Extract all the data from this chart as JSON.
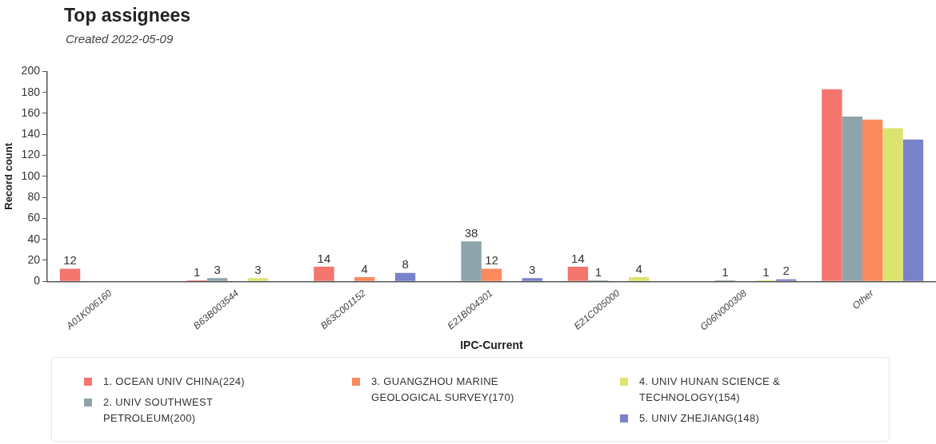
{
  "chart_data": {
    "type": "bar",
    "title": "Top assignees",
    "subtitle": "Created 2022-05-09",
    "xlabel": "IPC-Current",
    "ylabel": "Record count",
    "categories": [
      "A01K006160",
      "B63B003544",
      "B63C001152",
      "E21B004301",
      "E21C005000",
      "G06N000308",
      "Other"
    ],
    "series": [
      {
        "name": "1. OCEAN UNIV CHINA(224)",
        "color": "#f4766e",
        "values": [
          12,
          1,
          14,
          null,
          14,
          null,
          183
        ],
        "value_labels": [
          "12",
          "1",
          "14",
          null,
          "14",
          null,
          null
        ]
      },
      {
        "name": "2. UNIV SOUTHWEST PETROLEUM(200)",
        "color": "#8fa3ab",
        "values": [
          null,
          3,
          null,
          38,
          1,
          1,
          157
        ],
        "value_labels": [
          null,
          "3",
          null,
          "38",
          "1",
          "1",
          null
        ]
      },
      {
        "name": "3. GUANGZHOU MARINE GEOLOGICAL SURVEY(170)",
        "color": "#fb8a5e",
        "values": [
          null,
          null,
          4,
          12,
          null,
          null,
          154
        ],
        "value_labels": [
          null,
          null,
          "4",
          "12",
          null,
          null,
          null
        ]
      },
      {
        "name": "4. UNIV HUNAN SCIENCE & TECHNOLOGY(154)",
        "color": "#dce46f",
        "values": [
          null,
          3,
          null,
          null,
          4,
          1,
          146
        ],
        "value_labels": [
          null,
          "3",
          null,
          null,
          "4",
          "1",
          null
        ]
      },
      {
        "name": "5. UNIV ZHEJIANG(148)",
        "color": "#7782c9",
        "values": [
          null,
          null,
          8,
          3,
          null,
          2,
          135
        ],
        "value_labels": [
          null,
          null,
          "8",
          "3",
          null,
          "2",
          null
        ]
      }
    ],
    "ylim": [
      0,
      200
    ],
    "yticks": [
      0,
      20,
      40,
      60,
      80,
      100,
      120,
      140,
      160,
      180,
      200
    ],
    "grid": false,
    "legend": "bottom"
  }
}
